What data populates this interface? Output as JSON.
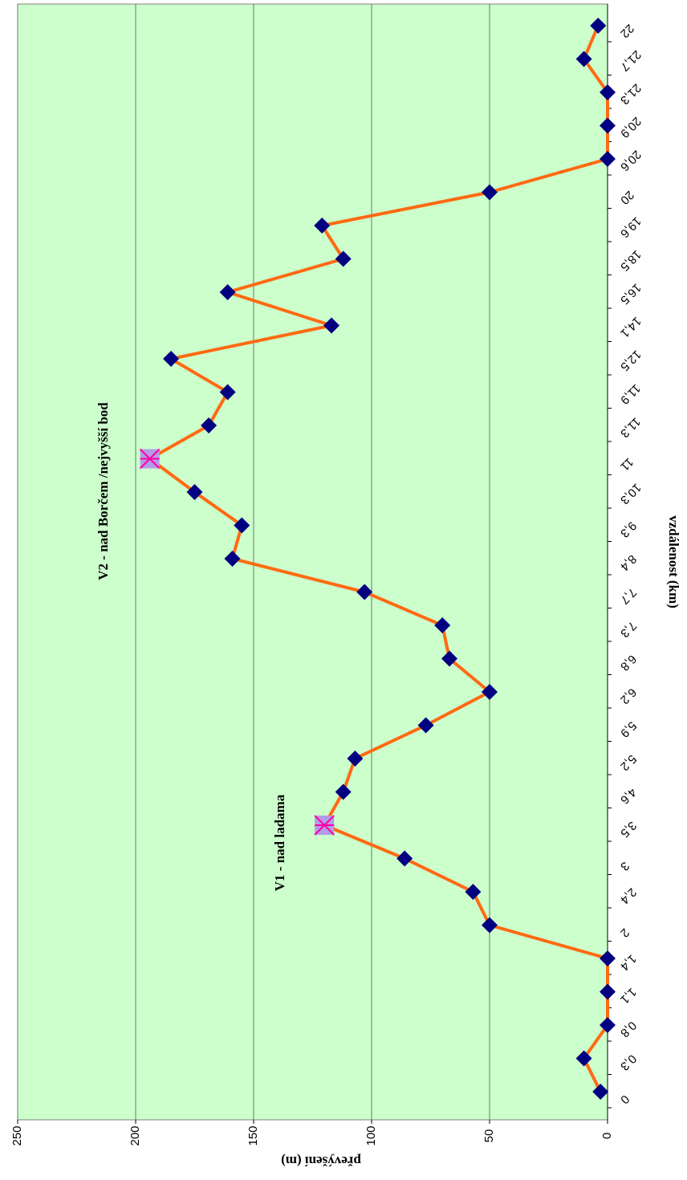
{
  "chart_data": {
    "type": "line",
    "x_label": "vzdálenost (km)",
    "y_label": "převýšení (m)",
    "categories": [
      "0",
      "0,3",
      "0,8",
      "1,1",
      "1,4",
      "2",
      "2,4",
      "3",
      "3,5",
      "4,6",
      "5,2",
      "5,9",
      "6,2",
      "6,8",
      "7,3",
      "7,7",
      "8,4",
      "9,3",
      "10,3",
      "11",
      "11,3",
      "11,9",
      "12,5",
      "14,1",
      "16,5",
      "18,5",
      "19,6",
      "20",
      "20,6",
      "20,9",
      "21,3",
      "21,7",
      "22"
    ],
    "series": [
      {
        "color": "#ff6a13",
        "marker_color": "#000080",
        "values": [
          3,
          10,
          0,
          0,
          0,
          50,
          57,
          86,
          120,
          112,
          107,
          77,
          50,
          67,
          70,
          103,
          159,
          155,
          175,
          194,
          169,
          161,
          185,
          117,
          161,
          112,
          121,
          50,
          0,
          0,
          0,
          10,
          4
        ]
      }
    ],
    "annotations": [
      {
        "text": "V1 - nad ladama",
        "index": 8
      },
      {
        "text": "V2 - nad Borčem /nejvyšší bod",
        "index": 19
      }
    ],
    "ylim": [
      0,
      250
    ],
    "yticks": [
      0,
      50,
      100,
      150,
      200,
      250
    ],
    "grid": true,
    "background": "#ccffcc"
  }
}
